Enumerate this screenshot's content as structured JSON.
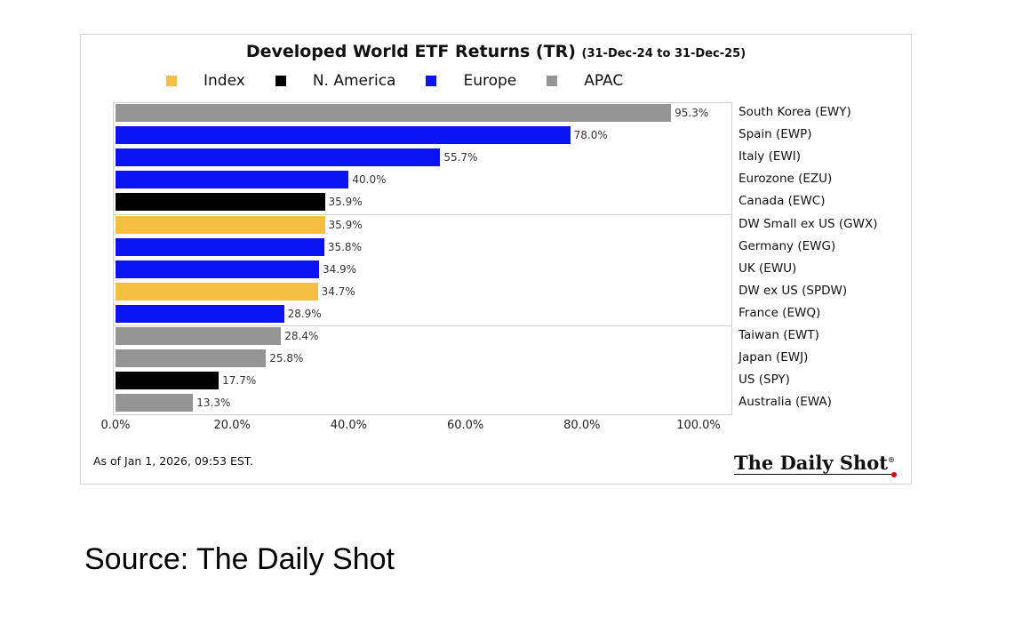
{
  "chart_data": {
    "type": "bar",
    "orientation": "horizontal",
    "title": "Developed World ETF Returns (TR)",
    "subtitle": "(31-Dec-24 to 31-Dec-25)",
    "legend": [
      {
        "name": "Index",
        "color": "#f5bf42"
      },
      {
        "name": "N. America",
        "color": "#000000"
      },
      {
        "name": "Europe",
        "color": "#0a14f0"
      },
      {
        "name": "APAC",
        "color": "#959595"
      }
    ],
    "legend_placement": "top",
    "categories": [
      "South Korea (EWY)",
      "Spain (EWP)",
      "Italy (EWI)",
      "Eurozone (EZU)",
      "Canada (EWC)",
      "DW Small ex US (GWX)",
      "Germany (EWG)",
      "UK (EWU)",
      "DW ex US (SPDW)",
      "France (EWQ)",
      "Taiwan (EWT)",
      "Japan (EWJ)",
      "US (SPY)",
      "Australia (EWA)"
    ],
    "values": [
      95.3,
      78.0,
      55.7,
      40.0,
      35.9,
      35.9,
      35.8,
      34.9,
      34.7,
      28.9,
      28.4,
      25.8,
      17.7,
      13.3
    ],
    "value_labels": [
      "95.3%",
      "78.0%",
      "55.7%",
      "40.0%",
      "35.9%",
      "35.9%",
      "35.8%",
      "34.9%",
      "34.7%",
      "28.9%",
      "28.4%",
      "25.8%",
      "17.7%",
      "13.3%"
    ],
    "groups": [
      "APAC",
      "Europe",
      "Europe",
      "Europe",
      "N. America",
      "Index",
      "Europe",
      "Europe",
      "Index",
      "Europe",
      "APAC",
      "APAC",
      "N. America",
      "APAC"
    ],
    "xlim": [
      0,
      100
    ],
    "xticks": [
      "0.0%",
      "20.0%",
      "40.0%",
      "60.0%",
      "80.0%",
      "100.0%"
    ],
    "grid": false
  },
  "footer": {
    "as_of": "As of Jan 1, 2026, 09:53 EST.",
    "logo": "The Daily Shot"
  },
  "source": "Source: The Daily Shot"
}
